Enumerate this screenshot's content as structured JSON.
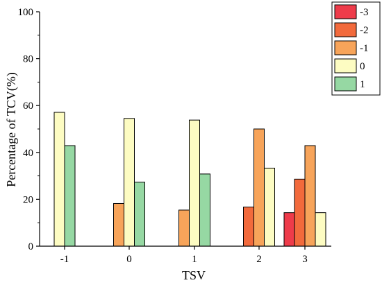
{
  "chart_data": {
    "type": "bar",
    "xlabel": "TSV",
    "ylabel": "Percentage of TCV(%)",
    "ylim": [
      0,
      100
    ],
    "yticks": [
      0,
      20,
      40,
      60,
      80,
      100
    ],
    "categories": [
      "-1",
      "0",
      "1",
      "2",
      "3"
    ],
    "grid": false,
    "legend_position": "top-right",
    "series": [
      {
        "name": "-3",
        "color": "#ee3b4a",
        "values": [
          0,
          0,
          0,
          0,
          14.3
        ]
      },
      {
        "name": "-2",
        "color": "#f26a3c",
        "values": [
          0,
          0,
          0,
          16.7,
          28.6
        ]
      },
      {
        "name": "-1",
        "color": "#f7a45a",
        "values": [
          0,
          18.2,
          15.4,
          50.0,
          42.9
        ]
      },
      {
        "name": "0",
        "color": "#fdfcc2",
        "values": [
          57.1,
          54.5,
          53.8,
          33.3,
          14.3
        ]
      },
      {
        "name": "1",
        "color": "#96d8a3",
        "values": [
          42.9,
          27.3,
          30.8,
          0,
          0
        ]
      }
    ]
  }
}
